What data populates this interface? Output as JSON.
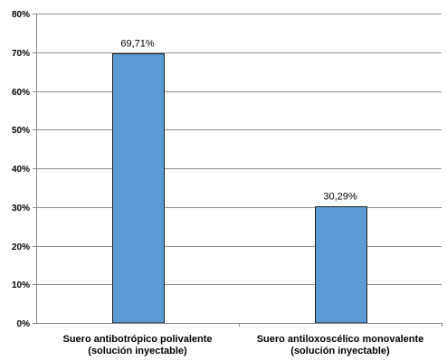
{
  "chart_data": {
    "type": "bar",
    "categories": [
      [
        "Suero antibotrópico polivalente",
        "(solución inyectable)"
      ],
      [
        "Suero antiloxoscélico monovalente",
        "(solución inyectable)"
      ]
    ],
    "values": [
      69.71,
      30.29
    ],
    "data_labels": [
      "69,71%",
      "30,29%"
    ],
    "y_ticks": [
      0,
      10,
      20,
      30,
      40,
      50,
      60,
      70,
      80
    ],
    "y_tick_labels": [
      "0%",
      "10%",
      "20%",
      "30%",
      "40%",
      "50%",
      "60%",
      "70%",
      "80%"
    ],
    "ylim": [
      0,
      80
    ],
    "grid": true,
    "legend": "none",
    "bar_color": "#5b9bd5",
    "bar_border_color": "#1f1f1f"
  }
}
